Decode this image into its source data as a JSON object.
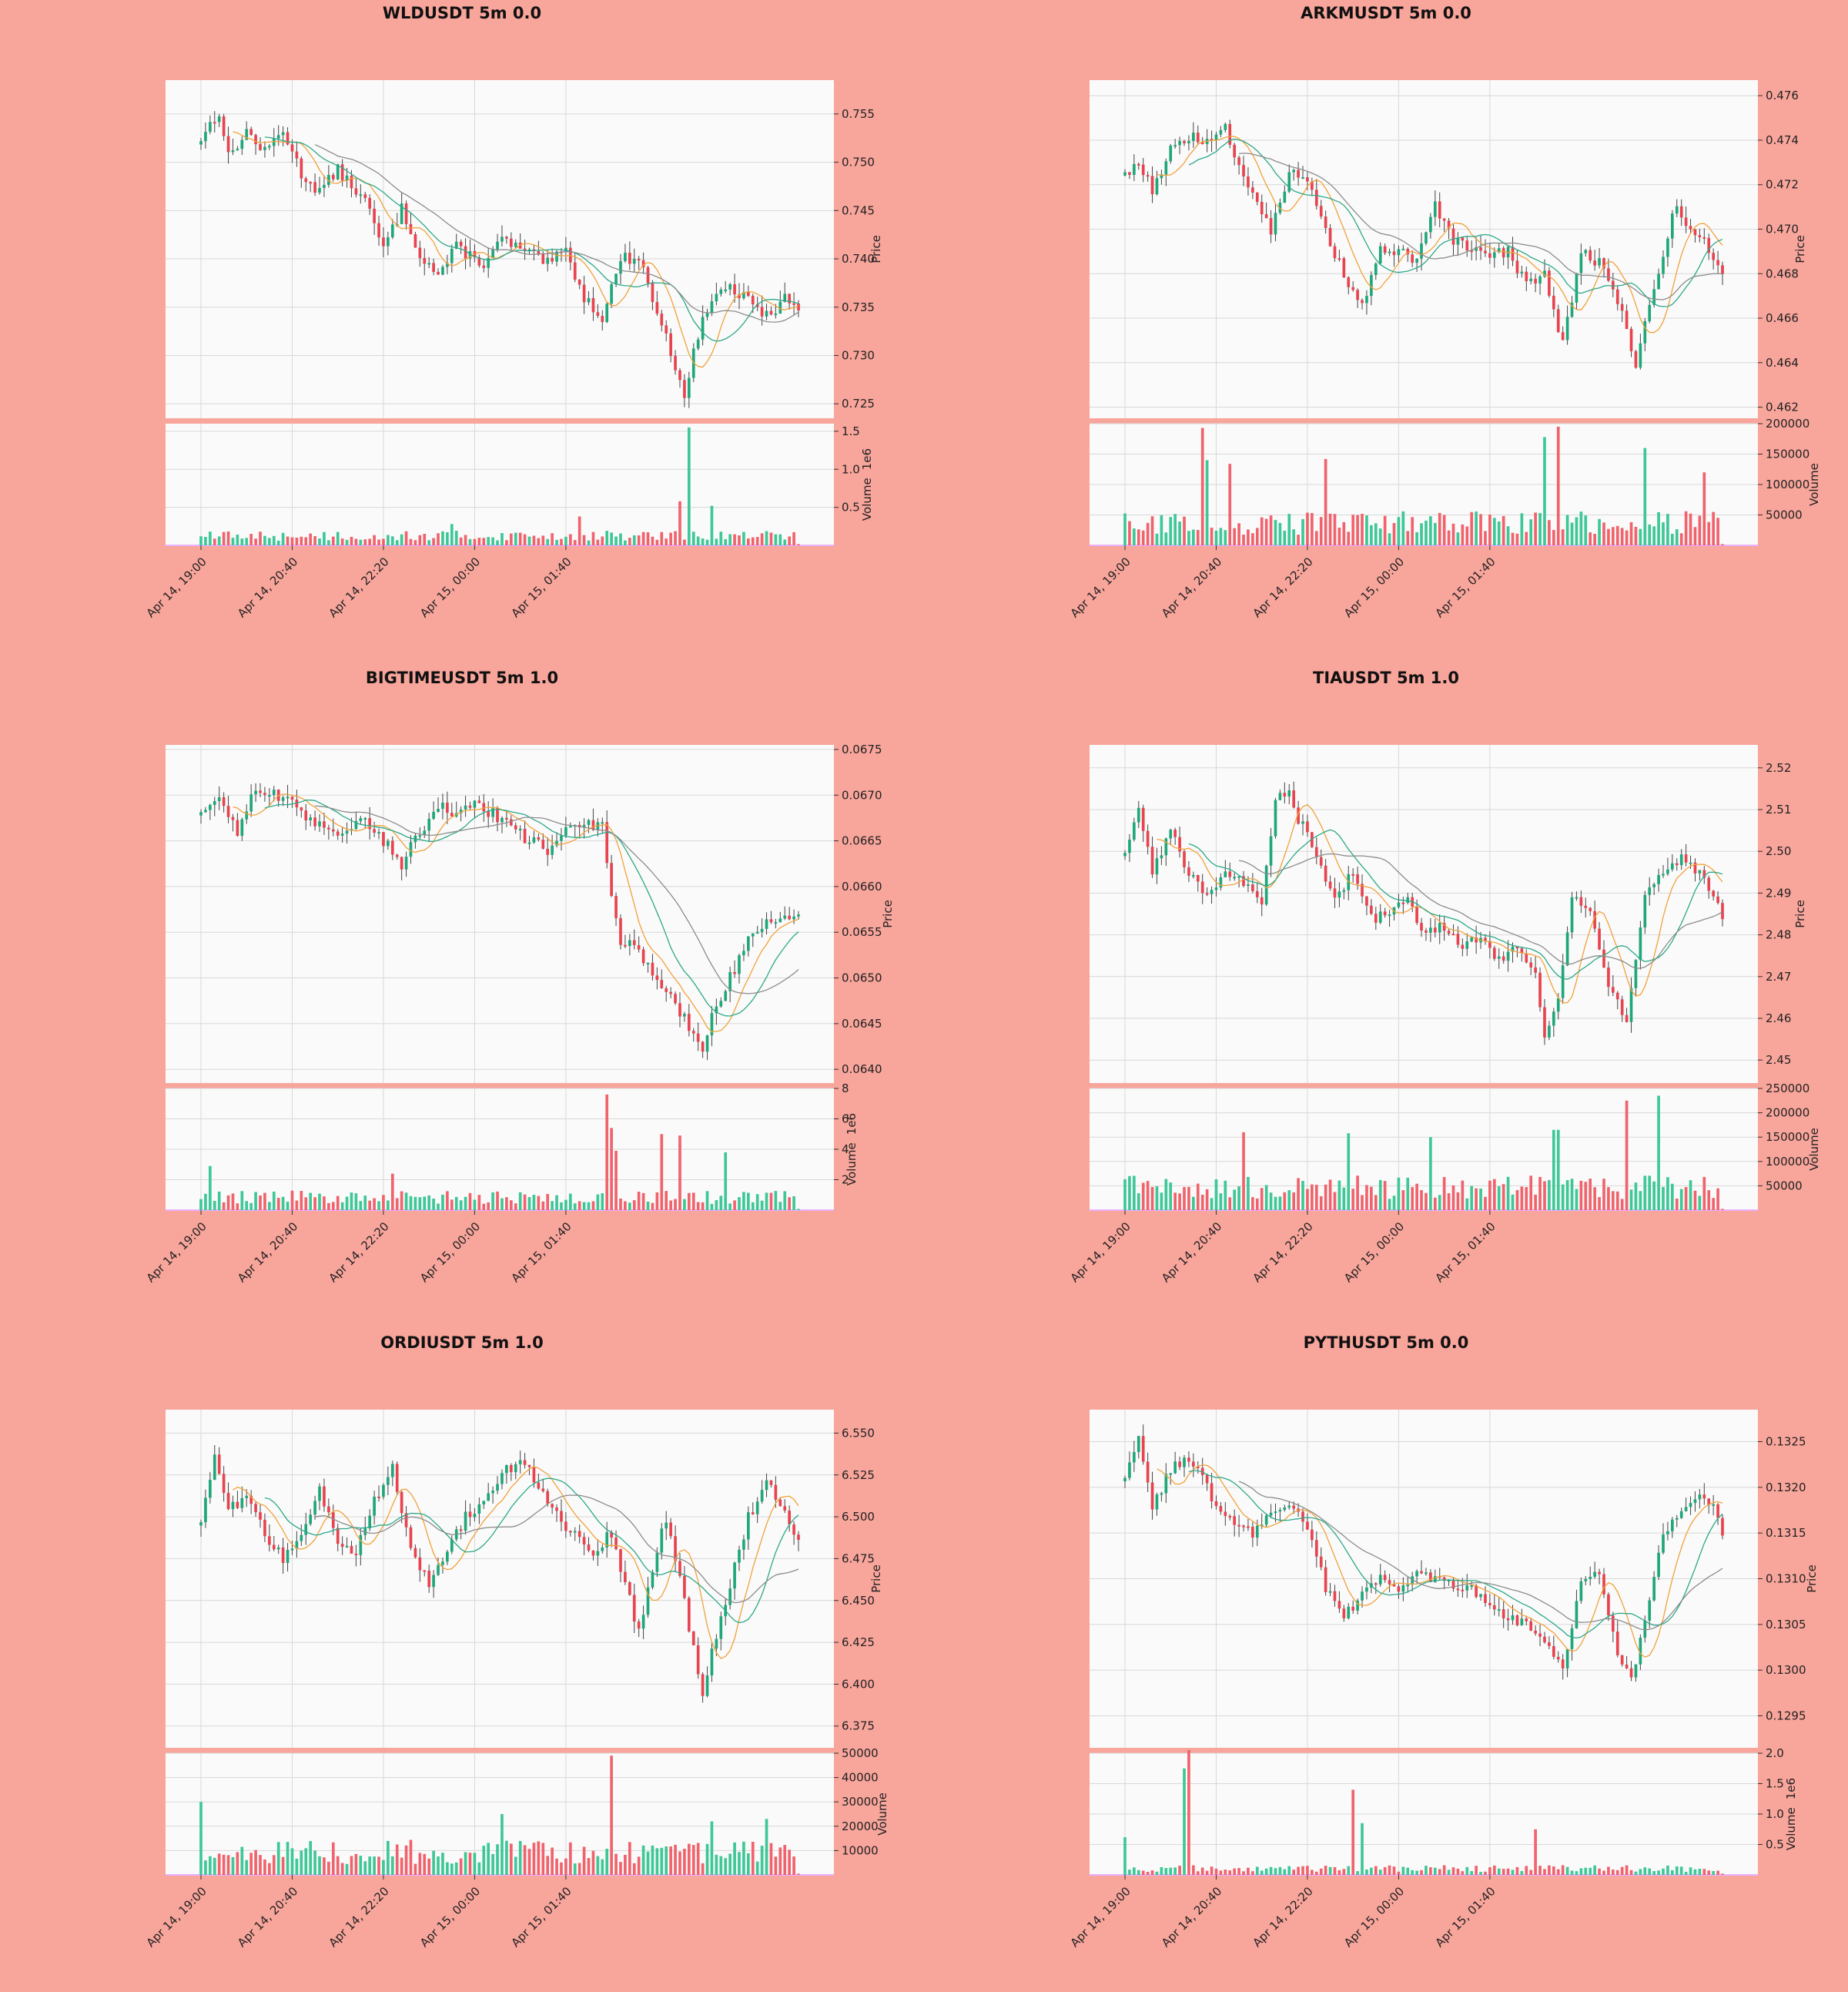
{
  "colors": {
    "background": "#f8a59b",
    "up": "#1fa77a",
    "down": "#e8434e",
    "ma_short": "#f2a13a",
    "ma_mid": "#2ca889",
    "ma_long": "#8c8c8c"
  },
  "time_ticks": [
    "Apr 14, 19:00",
    "Apr 14, 20:40",
    "Apr 14, 22:20",
    "Apr 15, 00:00",
    "Apr 15, 01:40"
  ],
  "chart_data": [
    {
      "type": "candlestick",
      "title": "WLDUSDT 5m 0.0",
      "ylabel": "Price",
      "volume_label": "Volume",
      "volume_exponent": "1e6",
      "price_ylim": [
        0.7235,
        0.7585
      ],
      "price_ticks": [
        "0.725",
        "0.730",
        "0.735",
        "0.740",
        "0.745",
        "0.750",
        "0.755"
      ],
      "volume_ylim": [
        0,
        1.6
      ],
      "volume_ticks": [
        "0.5",
        "1.0",
        "1.5"
      ],
      "close_path": [
        [
          0,
          0.7525
        ],
        [
          4,
          0.7553
        ],
        [
          6,
          0.7505
        ],
        [
          10,
          0.7532
        ],
        [
          14,
          0.751
        ],
        [
          18,
          0.7534
        ],
        [
          22,
          0.7488
        ],
        [
          26,
          0.747
        ],
        [
          30,
          0.7492
        ],
        [
          36,
          0.746
        ],
        [
          40,
          0.741
        ],
        [
          44,
          0.7452
        ],
        [
          48,
          0.7405
        ],
        [
          52,
          0.7383
        ],
        [
          56,
          0.7412
        ],
        [
          62,
          0.7395
        ],
        [
          66,
          0.742
        ],
        [
          72,
          0.7405
        ],
        [
          76,
          0.7395
        ],
        [
          80,
          0.7408
        ],
        [
          84,
          0.736
        ],
        [
          88,
          0.734
        ],
        [
          92,
          0.74
        ],
        [
          96,
          0.7402
        ],
        [
          100,
          0.7345
        ],
        [
          104,
          0.729
        ],
        [
          106,
          0.726
        ],
        [
          108,
          0.7302
        ],
        [
          111,
          0.735
        ],
        [
          115,
          0.7372
        ],
        [
          119,
          0.736
        ],
        [
          122,
          0.7348
        ],
        [
          125,
          0.7338
        ],
        [
          128,
          0.7365
        ],
        [
          131,
          0.735
        ]
      ],
      "volume_spikes": [
        [
          107,
          1.55
        ],
        [
          105,
          0.58
        ],
        [
          112,
          0.52
        ],
        [
          83,
          0.38
        ],
        [
          55,
          0.28
        ]
      ],
      "volume_base": 0.12,
      "ma_offsets": [
        -0.0012,
        -0.0022,
        -0.0035
      ]
    },
    {
      "type": "candlestick",
      "title": "ARKMUSDT 5m 0.0",
      "ylabel": "Price",
      "volume_label": "Volume",
      "volume_exponent": "",
      "price_ylim": [
        0.4615,
        0.4767
      ],
      "price_ticks": [
        "0.462",
        "0.464",
        "0.466",
        "0.468",
        "0.470",
        "0.472",
        "0.474",
        "0.476"
      ],
      "volume_ylim": [
        0,
        200000
      ],
      "volume_ticks": [
        "50000",
        "100000",
        "150000",
        "200000"
      ],
      "close_path": [
        [
          0,
          0.4725
        ],
        [
          3,
          0.473
        ],
        [
          6,
          0.4718
        ],
        [
          10,
          0.4735
        ],
        [
          14,
          0.4742
        ],
        [
          18,
          0.4738
        ],
        [
          22,
          0.4745
        ],
        [
          25,
          0.4728
        ],
        [
          28,
          0.4718
        ],
        [
          32,
          0.47
        ],
        [
          36,
          0.4725
        ],
        [
          40,
          0.4722
        ],
        [
          44,
          0.4698
        ],
        [
          48,
          0.468
        ],
        [
          52,
          0.4665
        ],
        [
          56,
          0.469
        ],
        [
          60,
          0.469
        ],
        [
          64,
          0.4685
        ],
        [
          68,
          0.471
        ],
        [
          72,
          0.4695
        ],
        [
          76,
          0.469
        ],
        [
          80,
          0.4688
        ],
        [
          84,
          0.469
        ],
        [
          88,
          0.4675
        ],
        [
          92,
          0.468
        ],
        [
          96,
          0.4648
        ],
        [
          100,
          0.469
        ],
        [
          104,
          0.4685
        ],
        [
          108,
          0.4668
        ],
        [
          112,
          0.464
        ],
        [
          115,
          0.4665
        ],
        [
          118,
          0.469
        ],
        [
          121,
          0.4712
        ],
        [
          124,
          0.4698
        ],
        [
          127,
          0.4694
        ],
        [
          131,
          0.4678
        ]
      ],
      "volume_spikes": [
        [
          17,
          193000
        ],
        [
          18,
          140000
        ],
        [
          92,
          178000
        ],
        [
          95,
          195000
        ],
        [
          114,
          160000
        ],
        [
          127,
          120000
        ],
        [
          23,
          134000
        ],
        [
          44,
          142000
        ]
      ],
      "volume_base": 35000,
      "ma_offsets": [
        -0.0003,
        -0.0006,
        -0.001
      ]
    },
    {
      "type": "candlestick",
      "title": "BIGTIMEUSDT 5m 1.0",
      "ylabel": "Price",
      "volume_label": "Volume",
      "volume_exponent": "1e6",
      "price_ylim": [
        0.06385,
        0.06755
      ],
      "price_ticks": [
        "0.0640",
        "0.0645",
        "0.0650",
        "0.0655",
        "0.0660",
        "0.0665",
        "0.0670",
        "0.0675"
      ],
      "volume_ylim": [
        0,
        8.0
      ],
      "volume_ticks": [
        "2",
        "4",
        "6",
        "8"
      ],
      "close_path": [
        [
          0,
          0.06675
        ],
        [
          4,
          0.067
        ],
        [
          8,
          0.0666
        ],
        [
          12,
          0.0671
        ],
        [
          16,
          0.067
        ],
        [
          20,
          0.0669
        ],
        [
          24,
          0.0667
        ],
        [
          30,
          0.0666
        ],
        [
          36,
          0.06675
        ],
        [
          40,
          0.0665
        ],
        [
          44,
          0.06625
        ],
        [
          48,
          0.0666
        ],
        [
          52,
          0.0669
        ],
        [
          56,
          0.06675
        ],
        [
          60,
          0.0669
        ],
        [
          64,
          0.0668
        ],
        [
          68,
          0.06665
        ],
        [
          72,
          0.0665
        ],
        [
          76,
          0.0664
        ],
        [
          80,
          0.0666
        ],
        [
          84,
          0.06665
        ],
        [
          88,
          0.0667
        ],
        [
          90,
          0.0659
        ],
        [
          92,
          0.0654
        ],
        [
          96,
          0.0653
        ],
        [
          100,
          0.065
        ],
        [
          104,
          0.0647
        ],
        [
          108,
          0.0644
        ],
        [
          110,
          0.0642
        ],
        [
          112,
          0.0646
        ],
        [
          116,
          0.065
        ],
        [
          120,
          0.0654
        ],
        [
          124,
          0.0656
        ],
        [
          128,
          0.0657
        ],
        [
          131,
          0.0657
        ]
      ],
      "volume_spikes": [
        [
          89,
          7.6
        ],
        [
          90,
          5.4
        ],
        [
          91,
          3.9
        ],
        [
          101,
          5.0
        ],
        [
          105,
          4.9
        ],
        [
          115,
          3.8
        ],
        [
          2,
          2.9
        ],
        [
          42,
          2.4
        ]
      ],
      "volume_base": 0.8,
      "ma_offsets": [
        -0.00012,
        -0.00025,
        -0.0004
      ]
    },
    {
      "type": "candlestick",
      "title": "TIAUSDT 5m 1.0",
      "ylabel": "Price",
      "volume_label": "Volume",
      "volume_exponent": "",
      "price_ylim": [
        2.4445,
        2.5255
      ],
      "price_ticks": [
        "2.45",
        "2.46",
        "2.47",
        "2.48",
        "2.49",
        "2.50",
        "2.51",
        "2.52"
      ],
      "volume_ylim": [
        0,
        250000
      ],
      "volume_ticks": [
        "50000",
        "100000",
        "150000",
        "200000",
        "250000"
      ],
      "close_path": [
        [
          0,
          2.5
        ],
        [
          3,
          2.51
        ],
        [
          6,
          2.495
        ],
        [
          10,
          2.505
        ],
        [
          14,
          2.495
        ],
        [
          18,
          2.49
        ],
        [
          22,
          2.495
        ],
        [
          26,
          2.492
        ],
        [
          30,
          2.488
        ],
        [
          33,
          2.512
        ],
        [
          36,
          2.515
        ],
        [
          38,
          2.508
        ],
        [
          42,
          2.5
        ],
        [
          46,
          2.488
        ],
        [
          50,
          2.495
        ],
        [
          54,
          2.484
        ],
        [
          58,
          2.485
        ],
        [
          62,
          2.488
        ],
        [
          66,
          2.48
        ],
        [
          70,
          2.482
        ],
        [
          74,
          2.478
        ],
        [
          78,
          2.48
        ],
        [
          82,
          2.474
        ],
        [
          86,
          2.478
        ],
        [
          90,
          2.47
        ],
        [
          92,
          2.455
        ],
        [
          95,
          2.465
        ],
        [
          98,
          2.49
        ],
        [
          102,
          2.485
        ],
        [
          106,
          2.468
        ],
        [
          110,
          2.46
        ],
        [
          114,
          2.49
        ],
        [
          118,
          2.494
        ],
        [
          122,
          2.498
        ],
        [
          126,
          2.495
        ],
        [
          131,
          2.485
        ]
      ],
      "volume_spikes": [
        [
          94,
          165000
        ],
        [
          95,
          165000
        ],
        [
          110,
          225000
        ],
        [
          117,
          235000
        ],
        [
          26,
          160000
        ],
        [
          49,
          158000
        ],
        [
          67,
          150000
        ]
      ],
      "volume_base": 45000,
      "ma_offsets": [
        -0.002,
        -0.004,
        -0.007
      ]
    },
    {
      "type": "candlestick",
      "title": "ORDIUSDT 5m 1.0",
      "ylabel": "Price",
      "volume_label": "Volume",
      "volume_exponent": "",
      "price_ylim": [
        6.362,
        6.564
      ],
      "price_ticks": [
        "6.375",
        "6.400",
        "6.425",
        "6.450",
        "6.475",
        "6.500",
        "6.525",
        "6.550"
      ],
      "volume_ylim": [
        0,
        50000
      ],
      "volume_ticks": [
        "10000",
        "20000",
        "30000",
        "40000",
        "50000"
      ],
      "close_path": [
        [
          0,
          6.495
        ],
        [
          3,
          6.535
        ],
        [
          6,
          6.505
        ],
        [
          10,
          6.51
        ],
        [
          14,
          6.49
        ],
        [
          18,
          6.475
        ],
        [
          22,
          6.49
        ],
        [
          26,
          6.515
        ],
        [
          30,
          6.485
        ],
        [
          34,
          6.48
        ],
        [
          38,
          6.51
        ],
        [
          42,
          6.53
        ],
        [
          46,
          6.48
        ],
        [
          50,
          6.46
        ],
        [
          54,
          6.48
        ],
        [
          58,
          6.5
        ],
        [
          62,
          6.51
        ],
        [
          66,
          6.525
        ],
        [
          70,
          6.535
        ],
        [
          74,
          6.52
        ],
        [
          78,
          6.5
        ],
        [
          82,
          6.49
        ],
        [
          86,
          6.48
        ],
        [
          90,
          6.49
        ],
        [
          93,
          6.46
        ],
        [
          96,
          6.43
        ],
        [
          99,
          6.47
        ],
        [
          102,
          6.5
        ],
        [
          106,
          6.45
        ],
        [
          110,
          6.39
        ],
        [
          112,
          6.42
        ],
        [
          116,
          6.46
        ],
        [
          120,
          6.5
        ],
        [
          124,
          6.52
        ],
        [
          128,
          6.505
        ],
        [
          131,
          6.485
        ]
      ],
      "volume_spikes": [
        [
          0,
          30000
        ],
        [
          90,
          49000
        ],
        [
          66,
          25000
        ],
        [
          112,
          22000
        ],
        [
          124,
          23000
        ]
      ],
      "volume_base": 9000,
      "ma_offsets": [
        -0.004,
        -0.008,
        -0.015
      ]
    },
    {
      "type": "candlestick",
      "title": "PYTHUSDT 5m 0.0",
      "ylabel": "Price",
      "volume_label": "Volume",
      "volume_exponent": "1e6",
      "price_ylim": [
        0.12915,
        0.13285
      ],
      "price_ticks": [
        "0.1295",
        "0.1300",
        "0.1305",
        "0.1310",
        "0.1315",
        "0.1320",
        "0.1325"
      ],
      "volume_ylim": [
        0,
        2.0
      ],
      "volume_ticks": [
        "0.5",
        "1.0",
        "1.5",
        "2.0"
      ],
      "close_path": [
        [
          0,
          0.13215
        ],
        [
          3,
          0.1325
        ],
        [
          6,
          0.13175
        ],
        [
          10,
          0.1322
        ],
        [
          14,
          0.1323
        ],
        [
          17,
          0.1321
        ],
        [
          20,
          0.1318
        ],
        [
          24,
          0.13165
        ],
        [
          28,
          0.1315
        ],
        [
          32,
          0.1317
        ],
        [
          36,
          0.13185
        ],
        [
          40,
          0.1316
        ],
        [
          44,
          0.1309
        ],
        [
          48,
          0.1306
        ],
        [
          52,
          0.1308
        ],
        [
          56,
          0.131
        ],
        [
          60,
          0.1309
        ],
        [
          64,
          0.1311
        ],
        [
          68,
          0.131
        ],
        [
          72,
          0.13095
        ],
        [
          76,
          0.1309
        ],
        [
          80,
          0.1307
        ],
        [
          84,
          0.1306
        ],
        [
          88,
          0.1305
        ],
        [
          92,
          0.1303
        ],
        [
          96,
          0.13
        ],
        [
          100,
          0.131
        ],
        [
          104,
          0.1311
        ],
        [
          108,
          0.1302
        ],
        [
          111,
          0.1299
        ],
        [
          114,
          0.1305
        ],
        [
          118,
          0.1315
        ],
        [
          122,
          0.1317
        ],
        [
          126,
          0.1319
        ],
        [
          129,
          0.1318
        ],
        [
          131,
          0.1315
        ]
      ],
      "volume_spikes": [
        [
          14,
          2.05
        ],
        [
          13,
          1.75
        ],
        [
          50,
          1.4
        ],
        [
          52,
          0.85
        ],
        [
          90,
          0.75
        ],
        [
          0,
          0.62
        ]
      ],
      "volume_base": 0.1,
      "ma_offsets": [
        -5e-05,
        -0.0001,
        -0.0002
      ]
    }
  ]
}
